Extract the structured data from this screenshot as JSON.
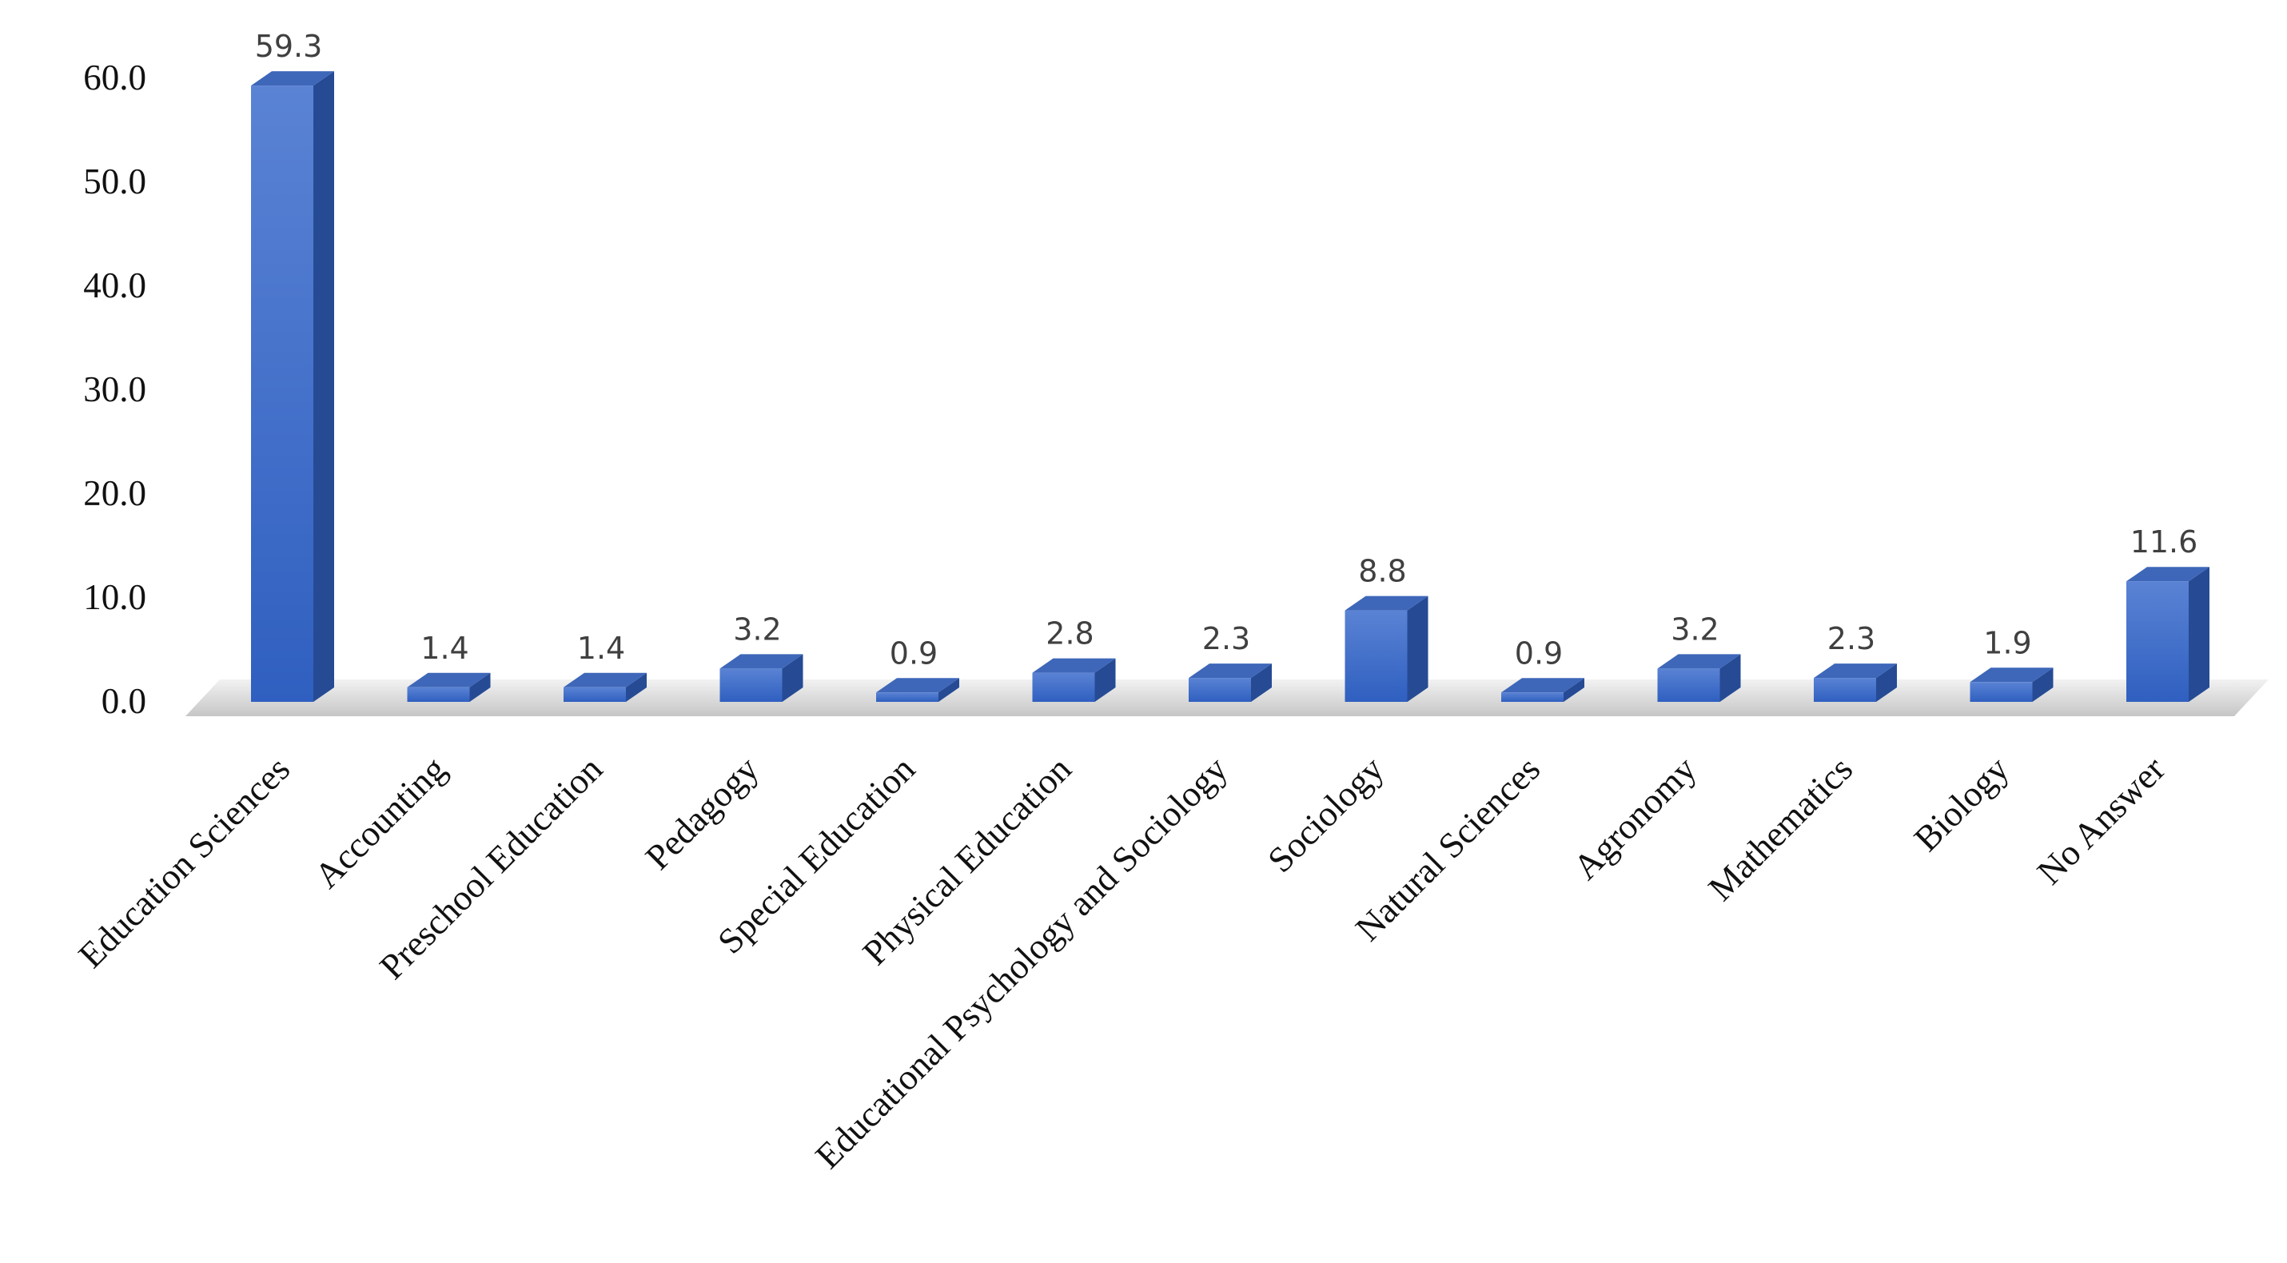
{
  "chart_data": {
    "type": "bar",
    "categories": [
      "Education Sciences",
      "Accounting",
      "Preschool Education",
      "Pedagogy",
      "Special Education",
      "Physical Education",
      "Educational Psychology and Sociology",
      "Sociology",
      "Natural Sciences",
      "Agronomy",
      "Mathematics",
      "Biology",
      "No Answer"
    ],
    "values": [
      59.3,
      1.4,
      1.4,
      3.2,
      0.9,
      2.8,
      2.3,
      8.8,
      0.9,
      3.2,
      2.3,
      1.9,
      11.6
    ],
    "value_labels": [
      "59.3",
      "1.4",
      "1.4",
      "3.2",
      "0.9",
      "2.8",
      "2.3",
      "8.8",
      "0.9",
      "3.2",
      "2.3",
      "1.9",
      "11.6"
    ],
    "yticks": [
      "0.0",
      "10.0",
      "20.0",
      "30.0",
      "40.0",
      "50.0",
      "60.0"
    ],
    "ylim": [
      0,
      60
    ],
    "grid": false,
    "legend": "none",
    "style": "3d-column",
    "colors": {
      "front_top": "#5a83d4",
      "front_bottom": "#2f5fc0",
      "side": "#264b94",
      "top": "#3e67b9",
      "floor": "#d0d0d0"
    }
  }
}
